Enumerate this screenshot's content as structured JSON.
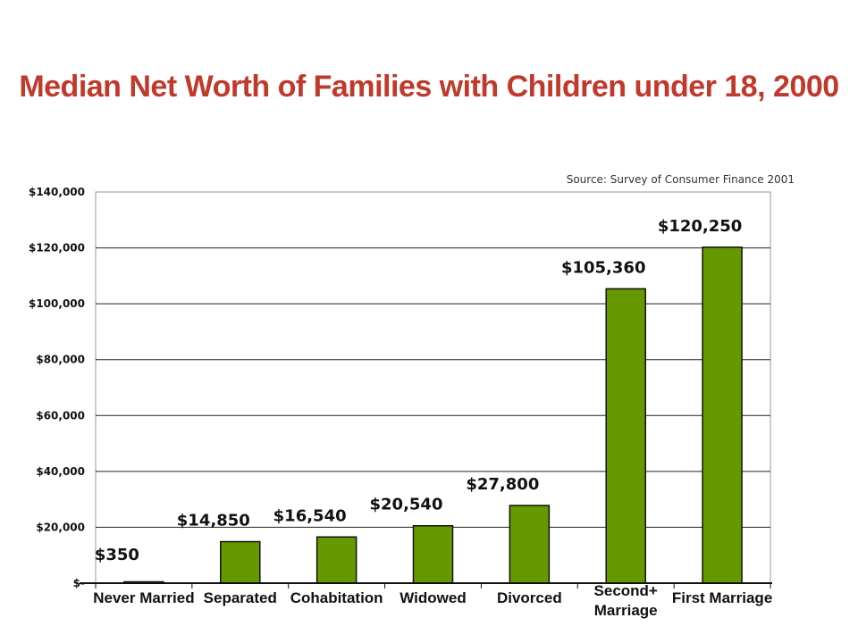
{
  "title": "Median Net Worth of Families with Children under 18, 2000",
  "source": "Source: Survey of Consumer Finance 2001",
  "chart_data": {
    "type": "bar",
    "title": "Median Net Worth of Families with Children under 18, 2000",
    "categories": [
      "Never Married",
      "Separated",
      "Cohabitation",
      "Widowed",
      "Divorced",
      "Second+ Marriage",
      "First Marriage"
    ],
    "category_lines": [
      [
        "Never Married"
      ],
      [
        "Separated"
      ],
      [
        "Cohabitation"
      ],
      [
        "Widowed"
      ],
      [
        "Divorced"
      ],
      [
        "Second+",
        "Marriage"
      ],
      [
        "First Marriage"
      ]
    ],
    "values": [
      350,
      14850,
      16540,
      20540,
      27800,
      105360,
      120250
    ],
    "data_labels": [
      "$350",
      "$14,850",
      "$16,540",
      "$20,540",
      "$27,800",
      "$105,360",
      "$120,250"
    ],
    "ylim": [
      0,
      140000
    ],
    "yticks": [
      0,
      20000,
      40000,
      60000,
      80000,
      100000,
      120000,
      140000
    ],
    "ytick_labels": [
      "$-",
      "$20,000",
      "$40,000",
      "$60,000",
      "$80,000",
      "$100,000",
      "$120,000",
      "$140,000"
    ],
    "xlabel": "",
    "ylabel": "",
    "grid": true,
    "bar_color": "#669900"
  }
}
